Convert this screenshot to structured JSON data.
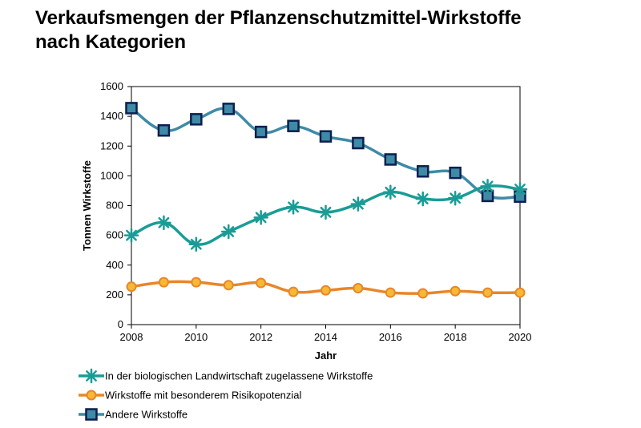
{
  "page": {
    "title_line1": "Verkaufsmengen der Pflanzenschutzmittel-Wirkstoffe",
    "title_line2": "nach Kategorien"
  },
  "chart_data": {
    "type": "line",
    "xlabel": "Jahr",
    "ylabel": "Tonnen Wirkstoffe",
    "xlim": [
      2008,
      2020
    ],
    "ylim": [
      0,
      1600
    ],
    "x_ticks": [
      "2008",
      "2010",
      "2012",
      "2014",
      "2016",
      "2018",
      "2020"
    ],
    "y_ticks": [
      "0",
      "200",
      "400",
      "600",
      "800",
      "1000",
      "1200",
      "1400",
      "1600"
    ],
    "x": [
      2008,
      2009,
      2010,
      2011,
      2012,
      2013,
      2014,
      2015,
      2016,
      2017,
      2018,
      2019,
      2020
    ],
    "grid": false,
    "legend_position": "bottom",
    "series": [
      {
        "name": "In der biologischen Landwirtschaft zugelassene Wirkstoffe",
        "color": "#1a9c96",
        "marker": "asterisk",
        "values": [
          600,
          685,
          540,
          625,
          720,
          790,
          755,
          810,
          890,
          845,
          850,
          930,
          910
        ]
      },
      {
        "name": "Wirkstoffe mit besonderem Risikopotenzial",
        "color": "#e8862a",
        "marker": "circle",
        "values": [
          255,
          285,
          285,
          265,
          280,
          220,
          230,
          245,
          215,
          210,
          225,
          215,
          215
        ]
      },
      {
        "name": "Andere Wirkstoffe",
        "color": "#3f8aa6",
        "marker": "square",
        "values": [
          1455,
          1305,
          1380,
          1450,
          1295,
          1335,
          1265,
          1220,
          1110,
          1030,
          1020,
          865,
          860
        ]
      }
    ]
  }
}
